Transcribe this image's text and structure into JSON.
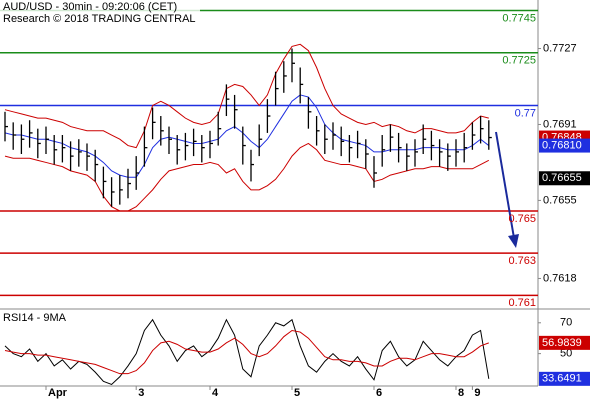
{
  "chart_data": {
    "type": "ohlc",
    "title": "AUD/USD - 30min - 09:20:06 (CET)",
    "subtitle": "Research © 2018 TRADING CENTRAL",
    "categories": [
      null,
      null,
      null,
      null,
      null,
      "Apr",
      null,
      null,
      null,
      null,
      null,
      null,
      null,
      null,
      null,
      null,
      "3",
      null,
      null,
      null,
      null,
      null,
      null,
      null,
      null,
      "4",
      null,
      null,
      null,
      null,
      null,
      null,
      null,
      null,
      null,
      "5",
      null,
      null,
      null,
      null,
      null,
      null,
      null,
      null,
      null,
      "6",
      null,
      null,
      null,
      null,
      null,
      null,
      null,
      null,
      null,
      "8",
      null,
      "9",
      null,
      null
    ],
    "ylim": [
      0.7604,
      0.775
    ],
    "yticks": [
      0.7727,
      0.7691,
      0.7655,
      0.7618
    ],
    "high": [
      0.7697,
      0.7692,
      0.7691,
      0.7693,
      0.7689,
      0.769,
      0.7686,
      0.7686,
      0.7683,
      0.7684,
      0.7682,
      0.7679,
      0.7671,
      0.7666,
      0.7667,
      0.767,
      0.7676,
      0.769,
      0.7699,
      0.7695,
      0.769,
      0.7686,
      0.7687,
      0.7689,
      0.7686,
      0.7688,
      0.7697,
      0.771,
      0.7705,
      0.769,
      0.7679,
      0.7691,
      0.7703,
      0.7716,
      0.7721,
      0.7727,
      0.7718,
      0.7704,
      0.7695,
      0.7691,
      0.7692,
      0.769,
      0.7686,
      0.7688,
      0.7684,
      0.7676,
      0.7686,
      0.7691,
      0.7687,
      0.7682,
      0.7684,
      0.7691,
      0.7688,
      0.7684,
      0.7682,
      0.7684,
      0.7687,
      0.7692,
      0.7695,
      0.7693
    ],
    "low": [
      0.7683,
      0.7679,
      0.7677,
      0.768,
      0.7675,
      0.7677,
      0.7672,
      0.7673,
      0.7669,
      0.7671,
      0.7669,
      0.7664,
      0.7656,
      0.7652,
      0.7653,
      0.7656,
      0.766,
      0.7671,
      0.7684,
      0.7681,
      0.7677,
      0.7672,
      0.7674,
      0.7676,
      0.7673,
      0.7675,
      0.7681,
      0.7695,
      0.7689,
      0.7672,
      0.7664,
      0.7676,
      0.7687,
      0.77,
      0.7706,
      0.7711,
      0.7701,
      0.7689,
      0.7681,
      0.7677,
      0.7679,
      0.7676,
      0.7673,
      0.7675,
      0.767,
      0.7661,
      0.7671,
      0.7678,
      0.7673,
      0.7669,
      0.7671,
      0.7677,
      0.7674,
      0.7671,
      0.7669,
      0.7671,
      0.7673,
      0.7679,
      0.7682,
      0.7679
    ],
    "close": [
      0.769,
      0.7686,
      0.7684,
      0.7687,
      0.7682,
      0.7684,
      0.7679,
      0.768,
      0.7676,
      0.7678,
      0.7676,
      0.7672,
      0.7664,
      0.7659,
      0.766,
      0.7663,
      0.7668,
      0.768,
      0.7692,
      0.7688,
      0.7684,
      0.7679,
      0.7681,
      0.7683,
      0.768,
      0.7682,
      0.7689,
      0.7703,
      0.7698,
      0.7681,
      0.7672,
      0.7684,
      0.7695,
      0.7708,
      0.7714,
      0.772,
      0.771,
      0.7697,
      0.7688,
      0.7684,
      0.7686,
      0.7683,
      0.768,
      0.7682,
      0.7677,
      0.7668,
      0.7679,
      0.7685,
      0.768,
      0.7676,
      0.7678,
      0.7684,
      0.7681,
      0.7678,
      0.7676,
      0.7678,
      0.768,
      0.7686,
      0.7689,
      0.76848
    ],
    "bar_color": "#000000",
    "series": [
      {
        "color": "#cc0000",
        "values": [
          0.7698,
          0.7697,
          0.7696,
          0.7695,
          0.7694,
          0.7694,
          0.7693,
          0.7692,
          0.769,
          0.7689,
          0.7688,
          0.7688,
          0.7688,
          0.7686,
          0.7684,
          0.7681,
          0.768,
          0.7688,
          0.77,
          0.7702,
          0.77,
          0.7697,
          0.7694,
          0.7692,
          0.7691,
          0.7692,
          0.7696,
          0.7708,
          0.771,
          0.7709,
          0.7705,
          0.77,
          0.7705,
          0.7715,
          0.7722,
          0.7728,
          0.7729,
          0.7726,
          0.7718,
          0.7708,
          0.77,
          0.7696,
          0.7694,
          0.7692,
          0.7691,
          0.7692,
          0.769,
          0.7691,
          0.769,
          0.7688,
          0.7687,
          0.7689,
          0.7689,
          0.7688,
          0.7687,
          0.7687,
          0.7688,
          0.7692,
          0.7695,
          0.7694
        ]
      },
      {
        "color": "#cc0000",
        "values": [
          0.7676,
          0.7675,
          0.7675,
          0.7675,
          0.7674,
          0.7673,
          0.7672,
          0.7671,
          0.7669,
          0.7668,
          0.7667,
          0.7664,
          0.7657,
          0.7652,
          0.765,
          0.765,
          0.7652,
          0.7656,
          0.766,
          0.7665,
          0.7669,
          0.767,
          0.7671,
          0.7672,
          0.7672,
          0.7673,
          0.7672,
          0.7668,
          0.767,
          0.7664,
          0.766,
          0.766,
          0.7662,
          0.7665,
          0.767,
          0.7676,
          0.768,
          0.7682,
          0.7679,
          0.7674,
          0.7673,
          0.7672,
          0.7672,
          0.7671,
          0.767,
          0.7664,
          0.7665,
          0.7667,
          0.7668,
          0.7669,
          0.767,
          0.767,
          0.7671,
          0.7671,
          0.767,
          0.767,
          0.767,
          0.767,
          0.7672,
          0.7674
        ]
      },
      {
        "color": "#1f2fe0",
        "values": [
          0.7687,
          0.7686,
          0.7686,
          0.7685,
          0.7684,
          0.7684,
          0.7683,
          0.7682,
          0.768,
          0.7679,
          0.7678,
          0.7676,
          0.7673,
          0.7669,
          0.7667,
          0.7666,
          0.7666,
          0.7672,
          0.768,
          0.7684,
          0.7685,
          0.7684,
          0.7683,
          0.7682,
          0.7682,
          0.7683,
          0.7684,
          0.7688,
          0.769,
          0.7687,
          0.7683,
          0.768,
          0.7684,
          0.769,
          0.7696,
          0.7702,
          0.7705,
          0.7704,
          0.7699,
          0.7691,
          0.7687,
          0.7684,
          0.7683,
          0.7682,
          0.7681,
          0.7678,
          0.7678,
          0.7679,
          0.7679,
          0.7679,
          0.7679,
          0.768,
          0.768,
          0.768,
          0.7679,
          0.7679,
          0.7679,
          0.7681,
          0.7684,
          0.7681
        ]
      }
    ],
    "levels": [
      {
        "value": 0.7745,
        "color": "#1a8c1a"
      },
      {
        "value": 0.7725,
        "color": "#1a8c1a"
      },
      {
        "value": 0.77,
        "color": "#1f2fe0"
      },
      {
        "value": 0.765,
        "color": "#cc0000"
      },
      {
        "value": 0.763,
        "color": "#cc0000"
      },
      {
        "value": 0.761,
        "color": "#cc0000"
      }
    ],
    "tags": [
      {
        "value": 0.76848,
        "color": "#cc0000"
      },
      {
        "value": 0.7681,
        "label": "0.76810",
        "color": "#1f2fe0"
      },
      {
        "value": 0.76655,
        "color": "#000000"
      }
    ],
    "rsi": {
      "title": "RSI14 - 9MA",
      "ylim": [
        29,
        77
      ],
      "yticks": [
        70,
        50
      ],
      "series": [
        {
          "color": "#000000",
          "values": [
            55,
            50,
            48,
            53,
            45,
            50,
            42,
            46,
            40,
            45,
            43,
            38,
            32,
            30,
            35,
            42,
            50,
            65,
            72,
            62,
            55,
            45,
            52,
            55,
            48,
            52,
            60,
            72,
            62,
            40,
            35,
            55,
            62,
            70,
            68,
            72,
            55,
            42,
            38,
            45,
            50,
            45,
            42,
            48,
            40,
            33,
            52,
            58,
            48,
            42,
            46,
            58,
            52,
            46,
            42,
            48,
            52,
            62,
            65,
            33.6491
          ]
        },
        {
          "color": "#cc0000",
          "values": [
            52,
            51,
            50,
            50,
            49,
            49,
            48,
            47,
            46,
            45,
            44,
            43,
            41,
            39,
            37,
            37,
            39,
            44,
            52,
            57,
            58,
            56,
            53,
            52,
            51,
            51,
            53,
            57,
            60,
            56,
            50,
            48,
            50,
            55,
            61,
            65,
            64,
            60,
            54,
            48,
            46,
            46,
            45,
            45,
            44,
            42,
            42,
            45,
            47,
            47,
            46,
            48,
            50,
            50,
            49,
            48,
            48,
            51,
            55,
            56.9839
          ]
        }
      ],
      "tags": [
        {
          "value": 56.9839,
          "color": "#cc0000"
        },
        {
          "value": 33.6491,
          "color": "#1f2fe0"
        }
      ]
    }
  }
}
